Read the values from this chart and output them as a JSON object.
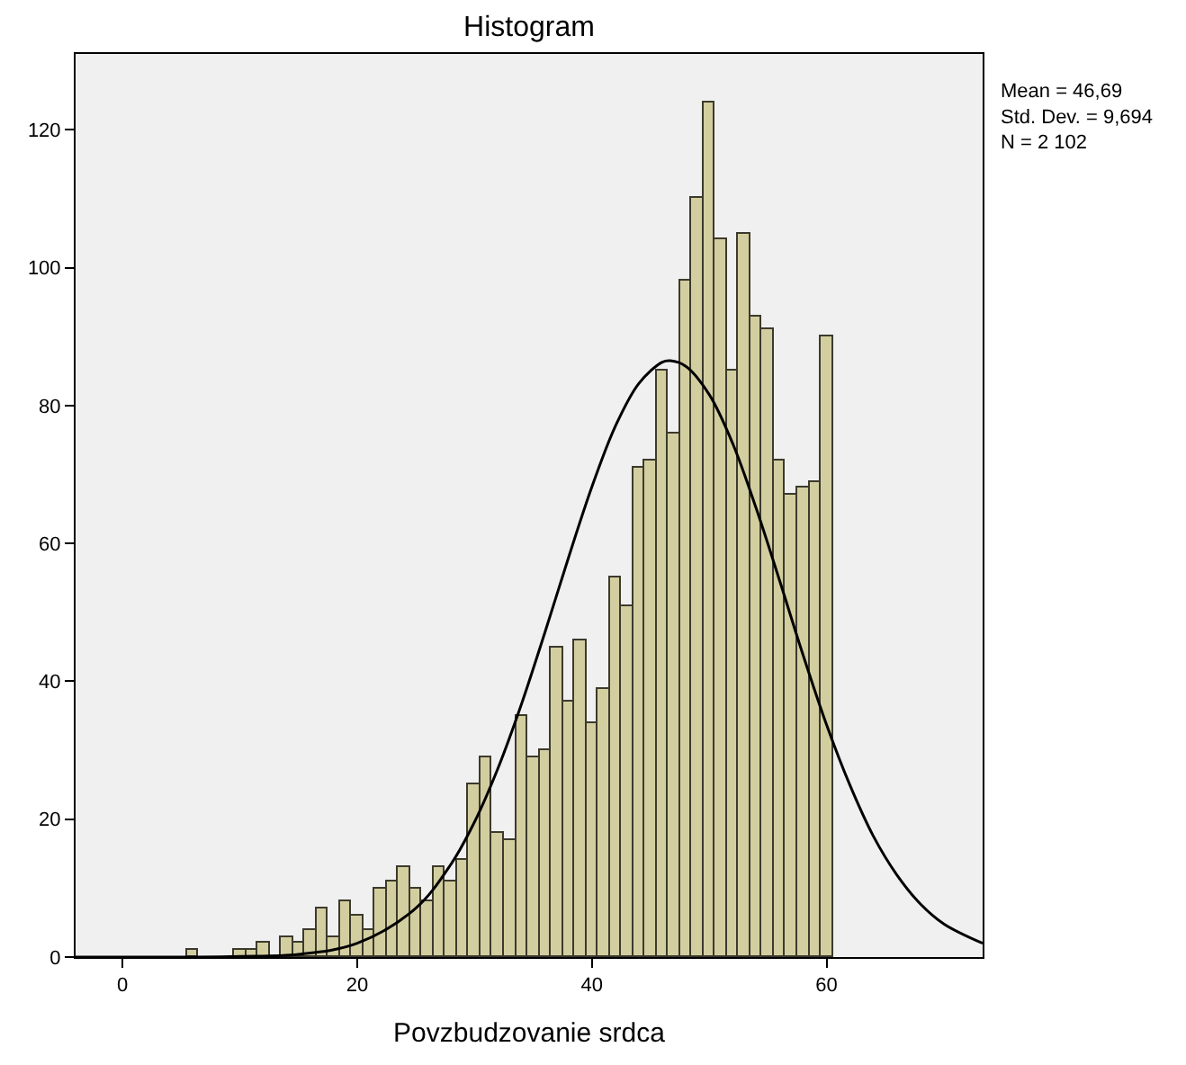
{
  "chart_data": {
    "type": "histogram",
    "title": "Histogram",
    "xlabel": "Povzbudzovanie srdca",
    "bins": [
      5.5,
      6.5,
      7.5,
      8.5,
      9.5,
      10.5,
      11.5,
      12.5,
      13.5,
      14.5,
      15.5,
      16.5,
      17.5,
      18.5,
      19.5,
      20.5,
      21.5,
      22.5,
      23.5,
      24.5,
      25.5,
      26.5,
      27.5,
      28.5,
      29.5,
      30.5,
      31.5,
      32.5,
      33.5,
      34.5,
      35.5,
      36.5,
      37.5,
      38.5,
      39.5,
      40.5,
      41.5,
      42.5,
      43.5,
      44.5,
      45.5,
      46.5,
      47.5,
      48.5,
      49.5,
      50.5,
      51.5,
      52.5,
      53.5,
      54.5,
      55.5,
      56.5,
      57.5,
      58.5,
      59.5,
      60.5
    ],
    "values": [
      1,
      0,
      0,
      0,
      1,
      1,
      2,
      0,
      3,
      2,
      4,
      7,
      3,
      8,
      6,
      4,
      10,
      11,
      13,
      10,
      8,
      13,
      11,
      14,
      25,
      29,
      18,
      17,
      35,
      29,
      30,
      45,
      37,
      46,
      34,
      39,
      55,
      51,
      71,
      72,
      85,
      76,
      98,
      110,
      124,
      104,
      85,
      105,
      93,
      91,
      72,
      67,
      68,
      69,
      90
    ],
    "color": "#d3cea0",
    "series": [
      {
        "type": "line",
        "color": "#000000",
        "x": [
          -4,
          0,
          5,
          10,
          15,
          20,
          25,
          28,
          30,
          32,
          34,
          36,
          38,
          40,
          42,
          44,
          46,
          46.69,
          48,
          50,
          52,
          54,
          56,
          58,
          60,
          62,
          64,
          66,
          68,
          70,
          73.3
        ],
        "values": [
          0,
          0,
          0,
          0.1,
          0.4,
          2,
          7.1,
          13.5,
          19.6,
          27.4,
          36.7,
          47.1,
          57.9,
          68.2,
          77,
          83.2,
          86.3,
          86.5,
          85.7,
          81.6,
          74.5,
          65.1,
          54.6,
          43.8,
          33.7,
          24.9,
          17.5,
          11.9,
          7.7,
          4.8,
          2
        ]
      }
    ],
    "xlim": [
      -4,
      73.3
    ],
    "ylim": [
      0,
      131
    ],
    "xticks": [
      0,
      20,
      40,
      60
    ],
    "yticks": [
      0,
      20,
      40,
      60,
      80,
      100,
      120
    ],
    "grid": false,
    "annotations": [
      "Mean = 46,69\nStd. Dev. = 9,694\nN = 2 102"
    ]
  }
}
